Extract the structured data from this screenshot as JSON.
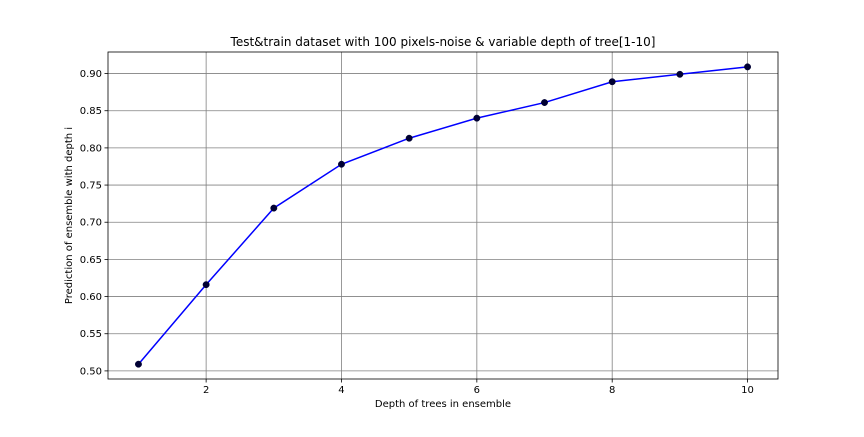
{
  "chart_data": {
    "type": "line",
    "title": "Test&train dataset with 100 pixels-noise & variable depth of tree[1-10]",
    "xlabel": "Depth of trees in ensemble",
    "ylabel": "Prediction of ensemble with depth i",
    "x": [
      1,
      2,
      3,
      4,
      5,
      6,
      7,
      8,
      9,
      10
    ],
    "series": [
      {
        "values": [
          0.509,
          0.616,
          0.719,
          0.778,
          0.813,
          0.84,
          0.861,
          0.889,
          0.899,
          0.909
        ],
        "line_color": "#0000ff",
        "marker_color": "#000033"
      }
    ],
    "xlim": [
      0.55,
      10.45
    ],
    "ylim": [
      0.4891,
      0.929
    ],
    "xticks": [
      2,
      4,
      6,
      8,
      10
    ],
    "xtick_labels": [
      "2",
      "4",
      "6",
      "8",
      "10"
    ],
    "yticks": [
      0.5,
      0.55,
      0.6,
      0.65,
      0.7,
      0.75,
      0.8,
      0.85,
      0.9
    ],
    "ytick_labels": [
      "0.50",
      "0.55",
      "0.60",
      "0.65",
      "0.70",
      "0.75",
      "0.80",
      "0.85",
      "0.90"
    ],
    "grid": true,
    "legend": "none"
  }
}
